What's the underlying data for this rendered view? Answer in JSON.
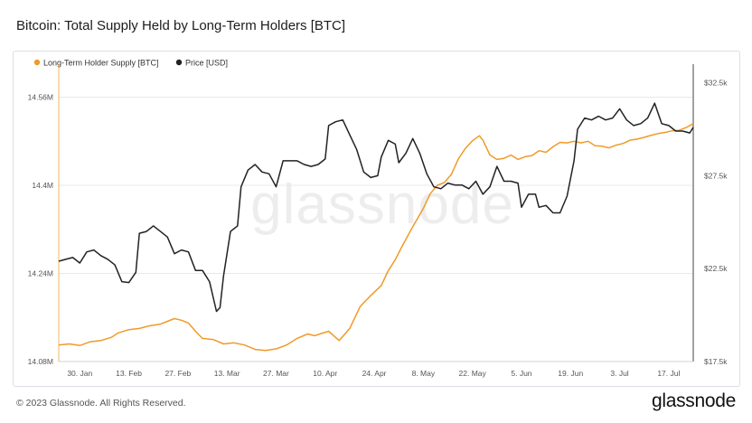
{
  "header": {
    "title": "Bitcoin: Total Supply Held by Long-Term Holders [BTC]"
  },
  "footer": {
    "copyright": "© 2023 Glassnode. All Rights Reserved.",
    "brand": "glassnode"
  },
  "watermark": "glassnode",
  "colors": {
    "lth_supply": "#f09a28",
    "price": "#222222",
    "grid": "#e6e8ec",
    "axis_text": "#555555"
  },
  "chart_data": {
    "type": "line",
    "title": "Bitcoin: Total Supply Held by Long-Term Holders [BTC]",
    "legend": {
      "placement": "top-left",
      "entries": [
        "Long-Term Holder Supply [BTC]",
        "Price [USD]"
      ]
    },
    "x_range": [
      "2023-01-24",
      "2023-07-24"
    ],
    "x_ticks": [
      {
        "date": "2023-01-30",
        "label": "30. Jan"
      },
      {
        "date": "2023-02-13",
        "label": "13. Feb"
      },
      {
        "date": "2023-02-27",
        "label": "27. Feb"
      },
      {
        "date": "2023-03-13",
        "label": "13. Mar"
      },
      {
        "date": "2023-03-27",
        "label": "27. Mar"
      },
      {
        "date": "2023-04-10",
        "label": "10. Apr"
      },
      {
        "date": "2023-04-24",
        "label": "24. Apr"
      },
      {
        "date": "2023-05-08",
        "label": "8. May"
      },
      {
        "date": "2023-05-22",
        "label": "22. May"
      },
      {
        "date": "2023-06-05",
        "label": "5. Jun"
      },
      {
        "date": "2023-06-19",
        "label": "19. Jun"
      },
      {
        "date": "2023-07-03",
        "label": "3. Jul"
      },
      {
        "date": "2023-07-17",
        "label": "17. Jul"
      }
    ],
    "y_left": {
      "range": [
        14080000,
        14620000
      ],
      "ticks": [
        {
          "value": 14080000,
          "label": "14.08M"
        },
        {
          "value": 14240000,
          "label": "14.24M"
        },
        {
          "value": 14400000,
          "label": "14.4M"
        },
        {
          "value": 14560000,
          "label": "14.56M"
        }
      ]
    },
    "y_right": {
      "range": [
        17500,
        33500
      ],
      "ticks": [
        {
          "value": 17500,
          "label": "$17.5k"
        },
        {
          "value": 22500,
          "label": "$22.5k"
        },
        {
          "value": 27500,
          "label": "$27.5k"
        },
        {
          "value": 32500,
          "label": "$32.5k"
        }
      ]
    },
    "grid": true,
    "series": [
      {
        "name": "Long-Term Holder Supply [BTC]",
        "axis": "left",
        "color": "#f09a28",
        "points": [
          [
            "2023-01-24",
            14110000
          ],
          [
            "2023-01-27",
            14112000
          ],
          [
            "2023-01-30",
            14109000
          ],
          [
            "2023-02-02",
            14116000
          ],
          [
            "2023-02-05",
            14118000
          ],
          [
            "2023-02-08",
            14124000
          ],
          [
            "2023-02-10",
            14132000
          ],
          [
            "2023-02-13",
            14138000
          ],
          [
            "2023-02-16",
            14140000
          ],
          [
            "2023-02-19",
            14145000
          ],
          [
            "2023-02-22",
            14148000
          ],
          [
            "2023-02-24",
            14153000
          ],
          [
            "2023-02-26",
            14158000
          ],
          [
            "2023-02-28",
            14155000
          ],
          [
            "2023-03-02",
            14150000
          ],
          [
            "2023-03-04",
            14135000
          ],
          [
            "2023-03-06",
            14122000
          ],
          [
            "2023-03-09",
            14120000
          ],
          [
            "2023-03-12",
            14112000
          ],
          [
            "2023-03-15",
            14114000
          ],
          [
            "2023-03-18",
            14110000
          ],
          [
            "2023-03-21",
            14102000
          ],
          [
            "2023-03-24",
            14100000
          ],
          [
            "2023-03-27",
            14103000
          ],
          [
            "2023-03-30",
            14110000
          ],
          [
            "2023-04-02",
            14122000
          ],
          [
            "2023-04-05",
            14130000
          ],
          [
            "2023-04-07",
            14127000
          ],
          [
            "2023-04-09",
            14131000
          ],
          [
            "2023-04-11",
            14135000
          ],
          [
            "2023-04-14",
            14118000
          ],
          [
            "2023-04-17",
            14140000
          ],
          [
            "2023-04-20",
            14180000
          ],
          [
            "2023-04-23",
            14200000
          ],
          [
            "2023-04-26",
            14218000
          ],
          [
            "2023-04-28",
            14245000
          ],
          [
            "2023-04-30",
            14265000
          ],
          [
            "2023-05-02",
            14290000
          ],
          [
            "2023-05-05",
            14325000
          ],
          [
            "2023-05-08",
            14358000
          ],
          [
            "2023-05-10",
            14385000
          ],
          [
            "2023-05-12",
            14400000
          ],
          [
            "2023-05-14",
            14405000
          ],
          [
            "2023-05-16",
            14420000
          ],
          [
            "2023-05-18",
            14448000
          ],
          [
            "2023-05-20",
            14467000
          ],
          [
            "2023-05-22",
            14481000
          ],
          [
            "2023-05-24",
            14490000
          ],
          [
            "2023-05-25",
            14482000
          ],
          [
            "2023-05-27",
            14455000
          ],
          [
            "2023-05-29",
            14447000
          ],
          [
            "2023-05-31",
            14449000
          ],
          [
            "2023-06-02",
            14455000
          ],
          [
            "2023-06-04",
            14447000
          ],
          [
            "2023-06-06",
            14452000
          ],
          [
            "2023-06-08",
            14454000
          ],
          [
            "2023-06-10",
            14463000
          ],
          [
            "2023-06-12",
            14460000
          ],
          [
            "2023-06-14",
            14470000
          ],
          [
            "2023-06-16",
            14478000
          ],
          [
            "2023-06-18",
            14477000
          ],
          [
            "2023-06-20",
            14480000
          ],
          [
            "2023-06-22",
            14477000
          ],
          [
            "2023-06-24",
            14480000
          ],
          [
            "2023-06-26",
            14472000
          ],
          [
            "2023-06-28",
            14471000
          ],
          [
            "2023-06-30",
            14468000
          ],
          [
            "2023-07-02",
            14473000
          ],
          [
            "2023-07-04",
            14476000
          ],
          [
            "2023-07-06",
            14482000
          ],
          [
            "2023-07-08",
            14484000
          ],
          [
            "2023-07-10",
            14487000
          ],
          [
            "2023-07-12",
            14491000
          ],
          [
            "2023-07-14",
            14494000
          ],
          [
            "2023-07-16",
            14496000
          ],
          [
            "2023-07-18",
            14499000
          ],
          [
            "2023-07-20",
            14500000
          ],
          [
            "2023-07-22",
            14505000
          ],
          [
            "2023-07-24",
            14512000
          ]
        ]
      },
      {
        "name": "Price [USD]",
        "axis": "right",
        "color": "#222222",
        "points": [
          [
            "2023-01-24",
            22900
          ],
          [
            "2023-01-26",
            23000
          ],
          [
            "2023-01-28",
            23100
          ],
          [
            "2023-01-30",
            22800
          ],
          [
            "2023-02-01",
            23400
          ],
          [
            "2023-02-03",
            23500
          ],
          [
            "2023-02-05",
            23200
          ],
          [
            "2023-02-07",
            23000
          ],
          [
            "2023-02-09",
            22700
          ],
          [
            "2023-02-11",
            21800
          ],
          [
            "2023-02-13",
            21750
          ],
          [
            "2023-02-15",
            22300
          ],
          [
            "2023-02-16",
            24400
          ],
          [
            "2023-02-18",
            24500
          ],
          [
            "2023-02-20",
            24800
          ],
          [
            "2023-02-22",
            24500
          ],
          [
            "2023-02-24",
            24200
          ],
          [
            "2023-02-26",
            23300
          ],
          [
            "2023-02-28",
            23500
          ],
          [
            "2023-03-02",
            23400
          ],
          [
            "2023-03-04",
            22400
          ],
          [
            "2023-03-06",
            22400
          ],
          [
            "2023-03-08",
            21800
          ],
          [
            "2023-03-10",
            20200
          ],
          [
            "2023-03-11",
            20400
          ],
          [
            "2023-03-12",
            22100
          ],
          [
            "2023-03-14",
            24500
          ],
          [
            "2023-03-16",
            24800
          ],
          [
            "2023-03-17",
            26900
          ],
          [
            "2023-03-19",
            27800
          ],
          [
            "2023-03-21",
            28100
          ],
          [
            "2023-03-23",
            27700
          ],
          [
            "2023-03-25",
            27600
          ],
          [
            "2023-03-27",
            26900
          ],
          [
            "2023-03-29",
            28300
          ],
          [
            "2023-03-31",
            28300
          ],
          [
            "2023-04-02",
            28300
          ],
          [
            "2023-04-04",
            28100
          ],
          [
            "2023-04-06",
            28000
          ],
          [
            "2023-04-08",
            28100
          ],
          [
            "2023-04-10",
            28400
          ],
          [
            "2023-04-11",
            30200
          ],
          [
            "2023-04-13",
            30400
          ],
          [
            "2023-04-15",
            30500
          ],
          [
            "2023-04-17",
            29700
          ],
          [
            "2023-04-19",
            28900
          ],
          [
            "2023-04-21",
            27700
          ],
          [
            "2023-04-23",
            27400
          ],
          [
            "2023-04-25",
            27500
          ],
          [
            "2023-04-26",
            28500
          ],
          [
            "2023-04-28",
            29400
          ],
          [
            "2023-04-30",
            29200
          ],
          [
            "2023-05-01",
            28200
          ],
          [
            "2023-05-03",
            28700
          ],
          [
            "2023-05-05",
            29500
          ],
          [
            "2023-05-07",
            28700
          ],
          [
            "2023-05-09",
            27600
          ],
          [
            "2023-05-11",
            26900
          ],
          [
            "2023-05-13",
            26800
          ],
          [
            "2023-05-15",
            27100
          ],
          [
            "2023-05-17",
            27000
          ],
          [
            "2023-05-19",
            27000
          ],
          [
            "2023-05-21",
            26800
          ],
          [
            "2023-05-23",
            27200
          ],
          [
            "2023-05-25",
            26500
          ],
          [
            "2023-05-27",
            26900
          ],
          [
            "2023-05-29",
            28000
          ],
          [
            "2023-05-31",
            27200
          ],
          [
            "2023-06-02",
            27200
          ],
          [
            "2023-06-04",
            27100
          ],
          [
            "2023-06-05",
            25800
          ],
          [
            "2023-06-07",
            26500
          ],
          [
            "2023-06-09",
            26500
          ],
          [
            "2023-06-10",
            25800
          ],
          [
            "2023-06-12",
            25900
          ],
          [
            "2023-06-14",
            25500
          ],
          [
            "2023-06-16",
            25500
          ],
          [
            "2023-06-18",
            26400
          ],
          [
            "2023-06-20",
            28300
          ],
          [
            "2023-06-21",
            30000
          ],
          [
            "2023-06-23",
            30600
          ],
          [
            "2023-06-25",
            30500
          ],
          [
            "2023-06-27",
            30700
          ],
          [
            "2023-06-29",
            30500
          ],
          [
            "2023-07-01",
            30600
          ],
          [
            "2023-07-03",
            31100
          ],
          [
            "2023-07-05",
            30500
          ],
          [
            "2023-07-07",
            30200
          ],
          [
            "2023-07-09",
            30300
          ],
          [
            "2023-07-11",
            30600
          ],
          [
            "2023-07-13",
            31400
          ],
          [
            "2023-07-15",
            30300
          ],
          [
            "2023-07-17",
            30200
          ],
          [
            "2023-07-19",
            29900
          ],
          [
            "2023-07-21",
            29900
          ],
          [
            "2023-07-23",
            29800
          ],
          [
            "2023-07-24",
            30100
          ]
        ]
      }
    ]
  }
}
